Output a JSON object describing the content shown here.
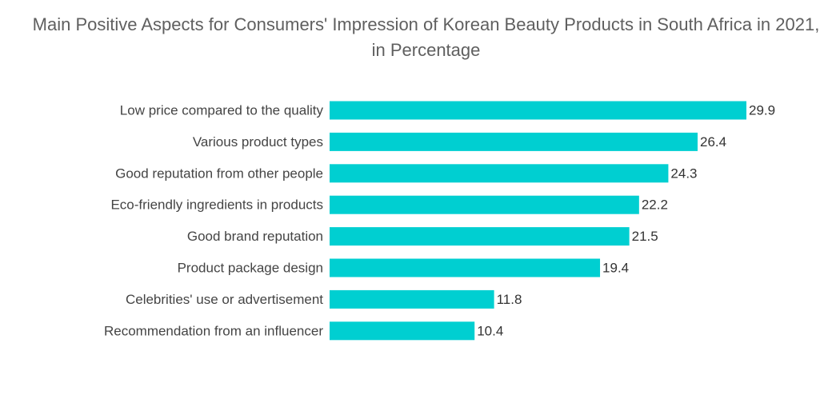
{
  "chart_data": {
    "type": "bar",
    "orientation": "horizontal",
    "title": "Main Positive Aspects for Consumers' Impression of Korean Beauty Products in South Africa in 2021, in Percentage",
    "xlabel": "",
    "ylabel": "",
    "xlim": [
      0,
      29.9
    ],
    "grid": false,
    "legend": "none",
    "categories": [
      "Low price compared to the quality",
      "Various product types",
      "Good reputation from other people",
      "Eco-friendly ingredients in products",
      "Good brand reputation",
      "Product package design",
      "Celebrities' use or advertisement",
      "Recommendation from an influencer"
    ],
    "values": [
      29.9,
      26.4,
      24.3,
      22.2,
      21.5,
      19.4,
      11.8,
      10.4
    ],
    "bar_color": "#00cfd1"
  }
}
